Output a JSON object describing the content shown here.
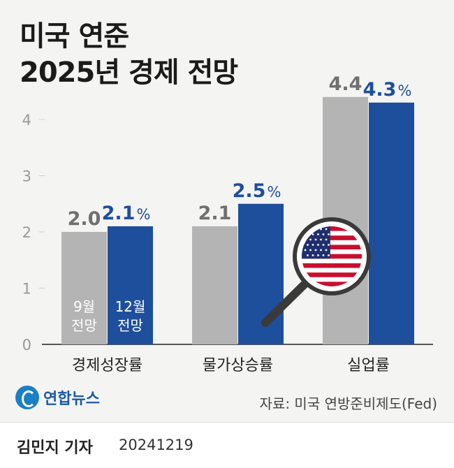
{
  "title_line1": "미국 연준",
  "title_line2": "2025년 경제 전망",
  "source": "자료: 미국 연방준비제도(Fed)",
  "logo_text": "연합뉴스",
  "reporter": "김민지 기자",
  "date": "20241219",
  "colors": {
    "sep": "#b4b4b4",
    "dec": "#1e4f9c",
    "sep_label": "#707070",
    "dec_label": "#1e4f9c"
  },
  "chart_data": {
    "type": "bar",
    "categories": [
      "경제성장률",
      "물가상승률",
      "실업률"
    ],
    "series": [
      {
        "name": "9월 전망",
        "name_line1": "9월",
        "name_line2": "전망",
        "values": [
          2.0,
          2.1,
          4.4
        ],
        "labels": [
          "2.0",
          "2.1",
          "4.4"
        ]
      },
      {
        "name": "12월 전망",
        "name_line1": "12월",
        "name_line2": "전망",
        "values": [
          2.1,
          2.5,
          4.3
        ],
        "labels": [
          "2.1",
          "2.5",
          "4.3"
        ]
      }
    ],
    "unit": "%",
    "ylim": [
      0,
      4.5
    ],
    "yticks": [
      "0",
      "1",
      "2",
      "3",
      "4"
    ],
    "grid": false
  }
}
